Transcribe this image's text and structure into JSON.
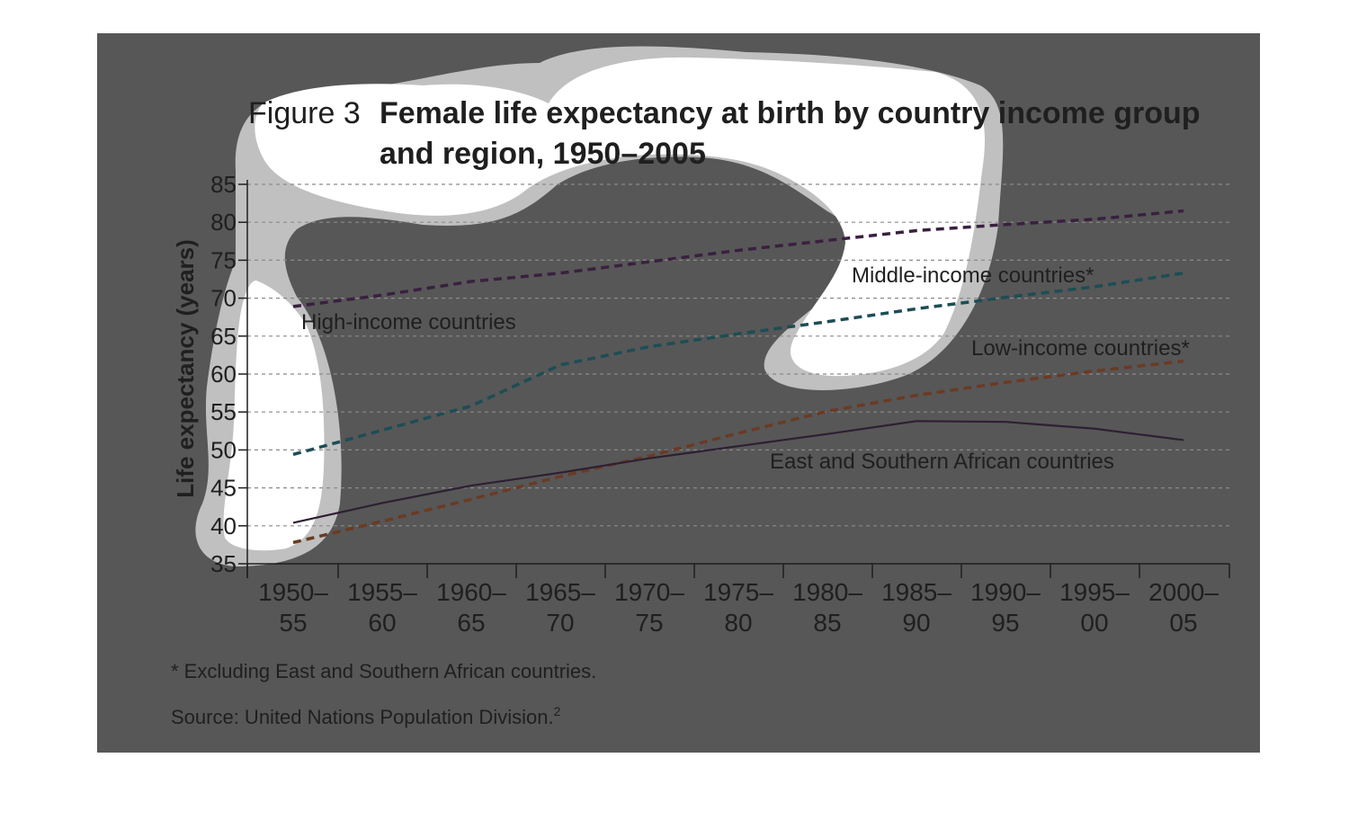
{
  "figure": {
    "label": "Figure 3",
    "title_line1": "Female life expectancy at birth by country income group",
    "title_line2": "and region, 1950–2005"
  },
  "chart_data": {
    "type": "line",
    "title": "Female life expectancy at birth by country income group and region, 1950–2005",
    "xlabel": "",
    "ylabel": "Life expectancy (years)",
    "ylim": [
      35,
      85
    ],
    "yticks": [
      35,
      40,
      45,
      50,
      55,
      60,
      65,
      70,
      75,
      80,
      85
    ],
    "grid": "horizontal dashed",
    "categories": [
      {
        "line1": "1950–",
        "line2": "55"
      },
      {
        "line1": "1955–",
        "line2": "60"
      },
      {
        "line1": "1960–",
        "line2": "65"
      },
      {
        "line1": "1965–",
        "line2": "70"
      },
      {
        "line1": "1970–",
        "line2": "75"
      },
      {
        "line1": "1975–",
        "line2": "80"
      },
      {
        "line1": "1980–",
        "line2": "85"
      },
      {
        "line1": "1985–",
        "line2": "90"
      },
      {
        "line1": "1990–",
        "line2": "95"
      },
      {
        "line1": "1995–",
        "line2": "00"
      },
      {
        "line1": "2000–",
        "line2": "05"
      }
    ],
    "series": [
      {
        "name": "High-income countries",
        "color": "#3a2040",
        "style": "dashed",
        "values": [
          68.9,
          70.4,
          72.2,
          73.3,
          74.8,
          76.3,
          77.6,
          78.9,
          79.7,
          80.4,
          81.5
        ]
      },
      {
        "name": "Middle-income countries*",
        "color": "#1d4d55",
        "style": "dashed",
        "values": [
          49.4,
          52.6,
          55.8,
          61.2,
          63.6,
          65.3,
          66.9,
          68.6,
          70.1,
          71.5,
          73.3
        ]
      },
      {
        "name": "Low-income countries*",
        "color": "#6b3a24",
        "style": "dashed",
        "values": [
          37.8,
          40.6,
          43.5,
          46.5,
          49.2,
          52.2,
          55.1,
          57.2,
          58.9,
          60.4,
          61.7
        ]
      },
      {
        "name": "East and Southern African countries",
        "color": "#2e1f33",
        "style": "solid",
        "values": [
          40.4,
          43.0,
          45.3,
          47.0,
          48.9,
          50.5,
          52.1,
          53.8,
          53.7,
          52.8,
          51.3
        ]
      }
    ]
  },
  "notes": {
    "footnote": "* Excluding East and Southern African countries.",
    "source": "Source: United Nations Population Division.",
    "source_sup": "2"
  }
}
